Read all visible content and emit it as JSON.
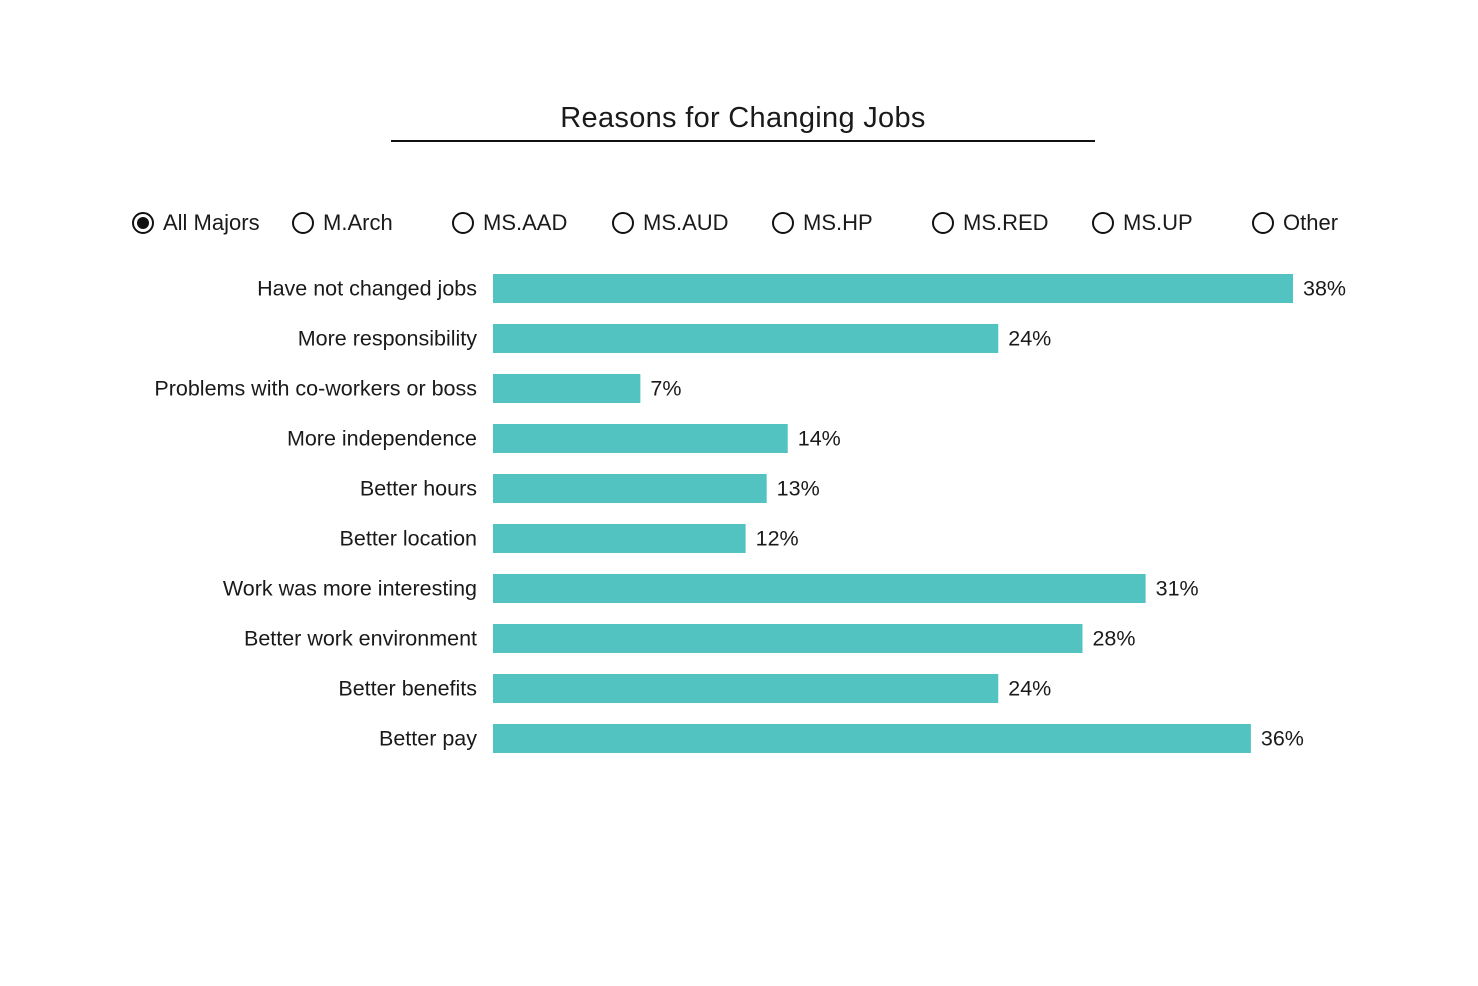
{
  "filter": {
    "options": [
      "All Majors",
      "M.Arch",
      "MS.AAD",
      "MS.AUD",
      "MS.HP",
      "MS.RED",
      "MS.UP",
      "Other"
    ],
    "selected": "All Majors"
  },
  "colors": {
    "bar": "#53c3c1"
  },
  "chart_data": {
    "type": "bar",
    "orientation": "horizontal",
    "title": "Reasons for Changing Jobs",
    "categories": [
      "Have not changed jobs",
      "More responsibility",
      "Problems with co-workers or boss",
      "More independence",
      "Better hours",
      "Better location",
      "Work was more interesting",
      "Better work environment",
      "Better benefits",
      "Better pay"
    ],
    "values": [
      38,
      24,
      7,
      14,
      13,
      12,
      31,
      28,
      24,
      36
    ],
    "data_labels": [
      "38%",
      "24%",
      "7%",
      "14%",
      "13%",
      "12%",
      "31%",
      "28%",
      "24%",
      "36%"
    ],
    "xlim": [
      0,
      38
    ],
    "grid": false,
    "legend": "none"
  }
}
